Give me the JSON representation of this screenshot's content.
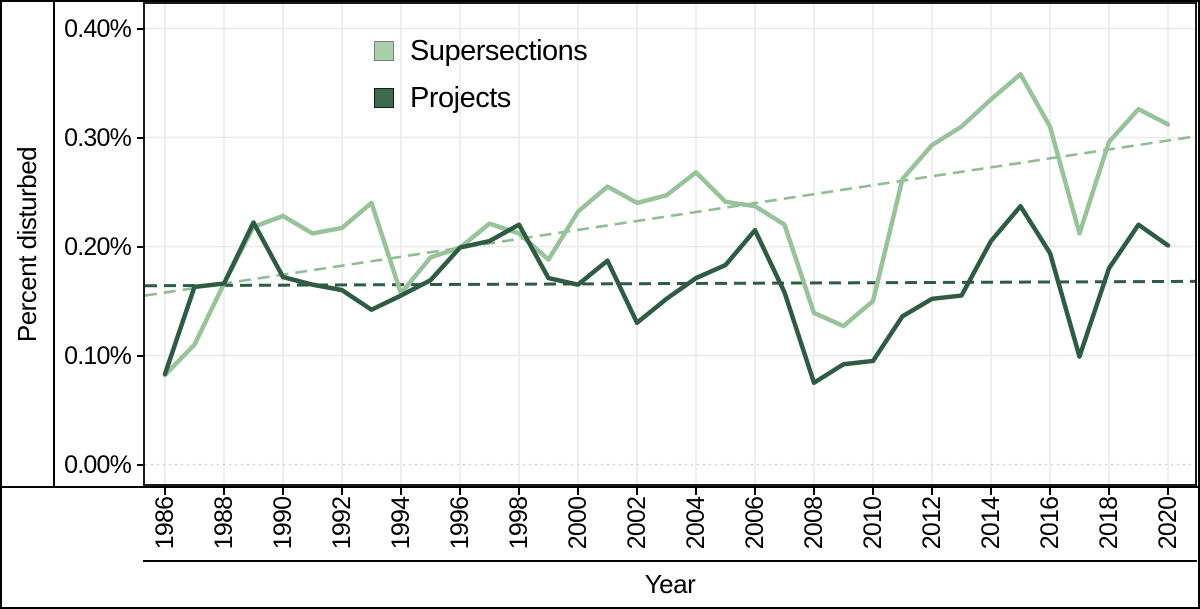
{
  "figure": {
    "y_axis_title": "Percent disturbed",
    "x_axis_title": "Year",
    "colors": {
      "supersections_line": "#98c29a",
      "projects_line": "#2e5c43",
      "supersections_trend": "#8fbd92",
      "projects_trend": "#2e5c43",
      "legend_supersections_fill": "#a9cfaa",
      "legend_supersections_border": "#7d7d7d",
      "legend_projects_fill": "#406a50",
      "legend_projects_border": "#101f16",
      "gridline": "#e9e9e9",
      "zero_gridline": "#cfcfcf",
      "plot_border": "#1a1a1a",
      "text": "#000000"
    }
  },
  "legend": {
    "items": [
      {
        "label": "Supersections"
      },
      {
        "label": "Projects"
      }
    ]
  },
  "chart_data": {
    "type": "line",
    "title": "",
    "xlabel": "Year",
    "ylabel": "Percent disturbed",
    "x_range_years": [
      1986,
      2020
    ],
    "ylim_percent": [
      0.0,
      0.4
    ],
    "grid": "major gridlines on (2-year vertical, 0.10% horizontal), zero line dotted",
    "legend_position": "inside plot, upper left",
    "x_ticks": [
      1986,
      1988,
      1990,
      1992,
      1994,
      1996,
      1998,
      2000,
      2002,
      2004,
      2006,
      2008,
      2010,
      2012,
      2014,
      2016,
      2018,
      2020
    ],
    "x_tick_labels": [
      "1986",
      "1988",
      "1990",
      "1992",
      "1994",
      "1996",
      "1998",
      "2000",
      "2002",
      "2004",
      "2006",
      "2008",
      "2010",
      "2012",
      "2014",
      "2016",
      "2018",
      "2020"
    ],
    "y_ticks": [
      0.0,
      0.1,
      0.2,
      0.3,
      0.4
    ],
    "y_tick_labels": [
      "0.00%",
      "0.10%",
      "0.20%",
      "0.30%",
      "0.40%"
    ],
    "x": [
      1986,
      1987,
      1988,
      1989,
      1990,
      1991,
      1992,
      1993,
      1994,
      1995,
      1996,
      1997,
      1998,
      1999,
      2000,
      2001,
      2002,
      2003,
      2004,
      2005,
      2006,
      2007,
      2008,
      2009,
      2010,
      2011,
      2012,
      2013,
      2014,
      2015,
      2016,
      2017,
      2018,
      2019,
      2020
    ],
    "series": [
      {
        "name": "Supersections",
        "style": "solid",
        "values_percent": [
          0.082,
          0.11,
          0.166,
          0.218,
          0.228,
          0.212,
          0.217,
          0.24,
          0.157,
          0.19,
          0.199,
          0.221,
          0.212,
          0.188,
          0.232,
          0.255,
          0.24,
          0.247,
          0.268,
          0.241,
          0.237,
          0.22,
          0.139,
          0.127,
          0.15,
          0.262,
          0.293,
          0.31,
          0.335,
          0.358,
          0.31,
          0.212,
          0.296,
          0.326,
          0.312
        ]
      },
      {
        "name": "Projects",
        "style": "solid",
        "values_percent": [
          0.083,
          0.163,
          0.166,
          0.222,
          0.172,
          0.165,
          0.16,
          0.142,
          0.155,
          0.169,
          0.199,
          0.205,
          0.22,
          0.171,
          0.165,
          0.187,
          0.13,
          0.152,
          0.171,
          0.183,
          0.215,
          0.158,
          0.075,
          0.092,
          0.095,
          0.136,
          0.152,
          0.155,
          0.205,
          0.237,
          0.194,
          0.099,
          0.18,
          0.22,
          0.201
        ]
      }
    ],
    "trend_lines": [
      {
        "name": "Supersections trend",
        "style": "dashed",
        "value_at_left_edge_percent": 0.155,
        "value_at_right_edge_percent": 0.301
      },
      {
        "name": "Projects trend",
        "style": "dashed",
        "value_at_left_edge_percent": 0.164,
        "value_at_right_edge_percent": 0.168
      }
    ]
  }
}
